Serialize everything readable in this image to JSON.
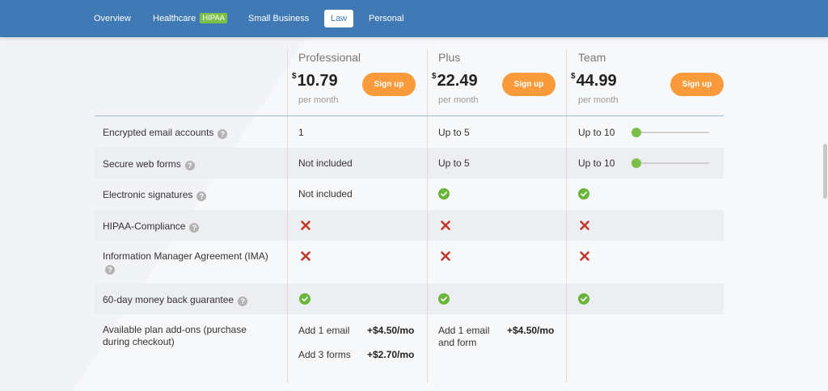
{
  "nav": {
    "tabs": [
      {
        "label": "Overview"
      },
      {
        "label": "Healthcare",
        "badge": "HIPAA"
      },
      {
        "label": "Small Business"
      },
      {
        "label": "Law",
        "active": true
      },
      {
        "label": "Personal"
      }
    ]
  },
  "plans": [
    {
      "name": "Professional",
      "currency": "$",
      "price": "10.79",
      "period": "per month",
      "cta": "Sign up"
    },
    {
      "name": "Plus",
      "currency": "$",
      "price": "22.49",
      "period": "per month",
      "cta": "Sign up"
    },
    {
      "name": "Team",
      "currency": "$",
      "price": "44.99",
      "period": "per month",
      "cta": "Sign up"
    }
  ],
  "features": [
    {
      "label": "Encrypted email accounts",
      "help": "?",
      "values": [
        "1",
        "Up to 5",
        "Up to 10"
      ],
      "team_slider": 0
    },
    {
      "label": "Secure web forms",
      "help": "?",
      "values": [
        "Not included",
        "Up to 5",
        "Up to 10"
      ],
      "team_slider": 0
    },
    {
      "label": "Electronic signatures",
      "help": "?",
      "values": [
        "Not included",
        "included",
        "included"
      ]
    },
    {
      "label": "HIPAA-Compliance",
      "help": "?",
      "values": [
        "not included",
        "not included",
        "not included"
      ]
    },
    {
      "label": "Information Manager Agreement (IMA)",
      "help": "?",
      "values": [
        "not included",
        "not included",
        "not included"
      ]
    },
    {
      "label": "60-day money back guarantee",
      "help": "?",
      "values": [
        "included",
        "included",
        "included"
      ]
    }
  ],
  "addons": {
    "label_line1": "Available plan add-ons (purchase",
    "label_line2": "during checkout)",
    "professional": [
      {
        "name": "Add 1 email",
        "price": "+$4.50/mo"
      },
      {
        "name": "Add 3 forms",
        "price": "+$2.70/mo"
      }
    ],
    "plus": [
      {
        "name_line1": "Add 1 email",
        "name_line2": "and form",
        "price": "+$4.50/mo"
      }
    ]
  },
  "colors": {
    "nav_bg": "#3f7ab5",
    "signup_bg": "#f99b3b",
    "check_green": "#6ab53b",
    "cross_red": "#c0392b",
    "hipaa_badge": "#7cc04a"
  }
}
